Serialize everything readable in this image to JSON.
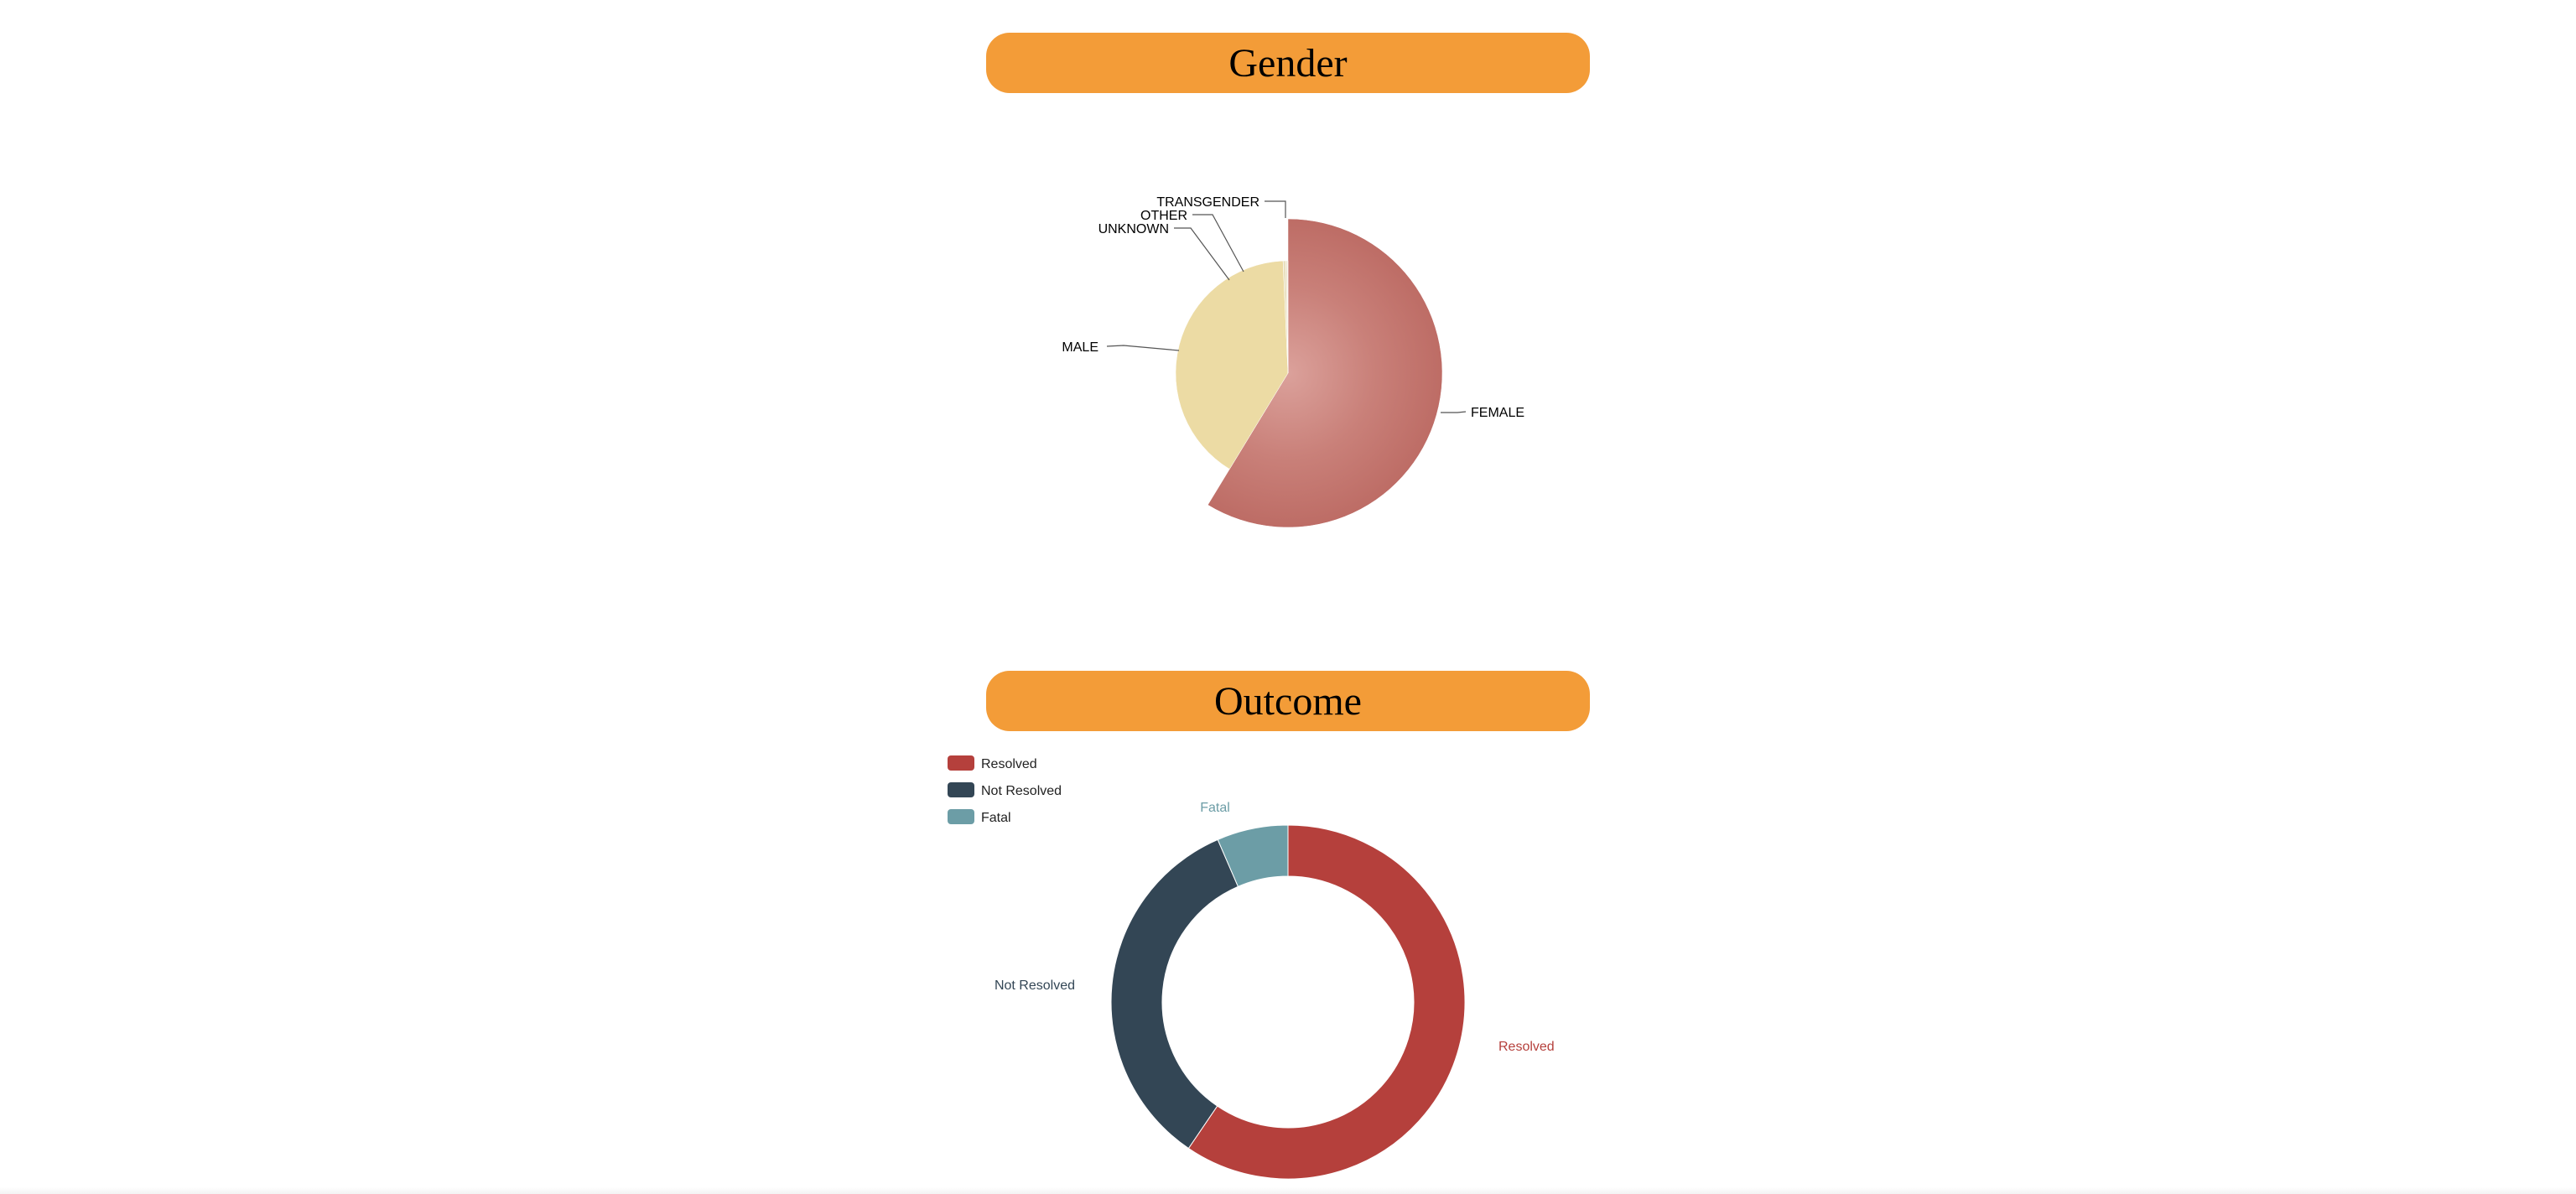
{
  "sections": [
    {
      "title": "Gender"
    },
    {
      "title": "Outcome"
    }
  ],
  "chart_data": [
    {
      "type": "pie",
      "title": "Gender",
      "categories": [
        "FEMALE",
        "MALE",
        "UNKNOWN",
        "OTHER",
        "TRANSGENDER"
      ],
      "values": [
        58.7,
        40.6,
        0.4,
        0.2,
        0.1
      ],
      "colors": [
        "#c0706a",
        "#ecdba4",
        "#e9e0c0",
        "#ece4c8",
        "#f0e8d0"
      ],
      "labels_shown": true,
      "legend": "none"
    },
    {
      "type": "pie",
      "subtype": "donut",
      "title": "Outcome",
      "categories": [
        "Resolved",
        "Not Resolved",
        "Fatal"
      ],
      "values": [
        59.5,
        34.0,
        6.5
      ],
      "colors": [
        "#b5403c",
        "#334655",
        "#6c9da6"
      ],
      "labels_shown": true,
      "legend": "top-left"
    }
  ]
}
